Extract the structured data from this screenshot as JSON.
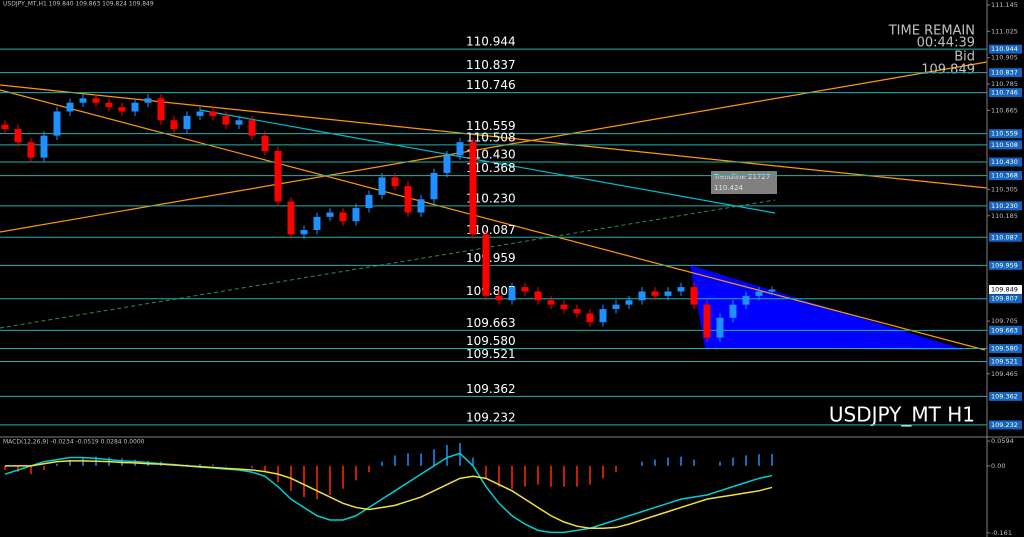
{
  "chart_data": [
    {
      "type": "candlestick",
      "title": "USDJPY_MT,H1  109.840 109.863 109.824 109.849",
      "watermark": "USDJPY_MT H1",
      "up_color": "#1e90ff",
      "down_color": "#ff0000",
      "level_color": "#20b2aa",
      "open": [
        110.6,
        110.58,
        110.52,
        110.45,
        110.55,
        110.66,
        110.7,
        110.72,
        110.7,
        110.68,
        110.66,
        110.7,
        110.72,
        110.62,
        110.58,
        110.64,
        110.66,
        110.64,
        110.6,
        110.62,
        110.55,
        110.48,
        110.25,
        110.1,
        110.12,
        110.18,
        110.2,
        110.16,
        110.22,
        110.28,
        110.36,
        110.32,
        110.2,
        110.26,
        110.38,
        110.46,
        110.52,
        110.1,
        109.82,
        109.8,
        109.86,
        109.84,
        109.8,
        109.78,
        109.76,
        109.74,
        109.7,
        109.76,
        109.78,
        109.8,
        109.84,
        109.82,
        109.84,
        109.86,
        109.78,
        109.63,
        109.72,
        109.78,
        109.82,
        109.84
      ],
      "high": [
        110.62,
        110.6,
        110.54,
        110.57,
        110.68,
        110.72,
        110.74,
        110.74,
        110.72,
        110.7,
        110.72,
        110.74,
        110.74,
        110.64,
        110.66,
        110.68,
        110.68,
        110.66,
        110.64,
        110.64,
        110.57,
        110.5,
        110.27,
        110.14,
        110.2,
        110.22,
        110.22,
        110.24,
        110.3,
        110.38,
        110.38,
        110.34,
        110.28,
        110.4,
        110.48,
        110.54,
        110.54,
        110.12,
        109.84,
        109.88,
        109.88,
        109.86,
        109.82,
        109.8,
        109.78,
        109.76,
        109.78,
        109.8,
        109.82,
        109.86,
        109.86,
        109.86,
        109.88,
        109.88,
        109.8,
        109.74,
        109.8,
        109.84,
        109.86,
        109.863
      ],
      "low": [
        110.56,
        110.5,
        110.43,
        110.43,
        110.53,
        110.64,
        110.68,
        110.68,
        110.66,
        110.64,
        110.64,
        110.68,
        110.6,
        110.56,
        110.56,
        110.62,
        110.62,
        110.58,
        110.58,
        110.53,
        110.46,
        110.23,
        110.08,
        110.08,
        110.1,
        110.16,
        110.14,
        110.14,
        110.2,
        110.26,
        110.3,
        110.18,
        110.18,
        110.24,
        110.36,
        110.44,
        110.08,
        109.8,
        109.78,
        109.78,
        109.82,
        109.78,
        109.76,
        109.74,
        109.72,
        109.68,
        109.68,
        109.74,
        109.76,
        109.78,
        109.8,
        109.8,
        109.82,
        109.76,
        109.61,
        109.61,
        109.7,
        109.76,
        109.8,
        109.824
      ],
      "close": [
        110.58,
        110.52,
        110.45,
        110.55,
        110.66,
        110.7,
        110.72,
        110.7,
        110.68,
        110.66,
        110.7,
        110.72,
        110.62,
        110.58,
        110.64,
        110.66,
        110.64,
        110.6,
        110.62,
        110.55,
        110.48,
        110.25,
        110.1,
        110.12,
        110.18,
        110.2,
        110.16,
        110.22,
        110.28,
        110.36,
        110.32,
        110.2,
        110.26,
        110.38,
        110.46,
        110.52,
        110.1,
        109.82,
        109.8,
        109.86,
        109.84,
        109.8,
        109.78,
        109.76,
        109.74,
        109.7,
        109.76,
        109.78,
        109.8,
        109.84,
        109.82,
        109.84,
        109.86,
        109.78,
        109.63,
        109.72,
        109.78,
        109.82,
        109.84,
        109.849
      ],
      "ylim": [
        109.177,
        111.168
      ],
      "yticks": [
        111.145,
        111.025,
        110.905,
        110.785,
        110.665,
        110.305,
        110.185,
        109.705,
        109.465
      ],
      "levels": [
        110.944,
        110.837,
        110.746,
        110.559,
        110.508,
        {
          "value": 110.43,
          "label": "110.430"
        },
        110.368,
        {
          "value": 110.23,
          "label": "110.230"
        },
        110.087,
        109.959,
        109.807,
        109.663,
        {
          "value": 109.58,
          "label": "109.580"
        },
        109.521,
        109.362,
        109.232
      ],
      "trendline": {
        "name": "Trendline 21727",
        "value": 110.424
      },
      "time_remain": {
        "title": "TIME REMAIN",
        "time": "00:44:39",
        "bid_label": "Bid",
        "bid": 109.849
      }
    },
    {
      "type": "macd",
      "title": "MACD(12,26,9) -0.0234 -0.0519 0.0284 0.0000",
      "ylim": [
        -0.171,
        0.0693
      ],
      "yticks": [
        0.0594,
        {
          "value": 0,
          "label": "0.00"
        },
        -0.161
      ],
      "histogram": {
        "up_color": "#1e90ff",
        "down_color": "#ff2a00",
        "values": [
          -0.01,
          -0.015,
          -0.02,
          -0.01,
          0.005,
          0.015,
          0.02,
          0.022,
          0.02,
          0.018,
          0.015,
          0.012,
          0.01,
          0.005,
          0.003,
          0.004,
          0.003,
          0.001,
          0,
          -0.005,
          -0.015,
          -0.04,
          -0.06,
          -0.075,
          -0.08,
          -0.07,
          -0.055,
          -0.035,
          -0.015,
          0.01,
          0.025,
          0.03,
          0.03,
          0.04,
          0.05,
          0.055,
          0.02,
          -0.03,
          -0.05,
          -0.055,
          -0.05,
          -0.045,
          -0.05,
          -0.05,
          -0.05,
          -0.045,
          -0.03,
          -0.015,
          0,
          0.01,
          0.015,
          0.02,
          0.022,
          0.015,
          0,
          0.01,
          0.02,
          0.025,
          0.028,
          0.0284
        ]
      },
      "series": [
        {
          "color": "#00ced1",
          "values": [
            -0.02,
            -0.01,
            0,
            0.01,
            0.015,
            0.02,
            0.02,
            0.018,
            0.015,
            0.012,
            0.01,
            0.008,
            0.005,
            0.003,
            0,
            -0.003,
            -0.005,
            -0.008,
            -0.01,
            -0.015,
            -0.025,
            -0.05,
            -0.08,
            -0.1,
            -0.12,
            -0.13,
            -0.13,
            -0.12,
            -0.1,
            -0.08,
            -0.06,
            -0.04,
            -0.02,
            0,
            0.02,
            0.03,
            0,
            -0.05,
            -0.09,
            -0.12,
            -0.14,
            -0.155,
            -0.16,
            -0.16,
            -0.155,
            -0.15,
            -0.14,
            -0.13,
            -0.12,
            -0.11,
            -0.1,
            -0.09,
            -0.08,
            -0.075,
            -0.07,
            -0.06,
            -0.05,
            -0.04,
            -0.03,
            -0.0234
          ]
        },
        {
          "color": "#f0e040",
          "values": [
            0,
            0,
            0,
            0.005,
            0.01,
            0.012,
            0.012,
            0.011,
            0.01,
            0.008,
            0.007,
            0.005,
            0.004,
            0.002,
            0,
            -0.002,
            -0.004,
            -0.006,
            -0.008,
            -0.01,
            -0.014,
            -0.02,
            -0.03,
            -0.045,
            -0.06,
            -0.075,
            -0.09,
            -0.1,
            -0.105,
            -0.1,
            -0.095,
            -0.085,
            -0.075,
            -0.06,
            -0.045,
            -0.03,
            -0.025,
            -0.03,
            -0.045,
            -0.06,
            -0.08,
            -0.1,
            -0.12,
            -0.135,
            -0.145,
            -0.15,
            -0.15,
            -0.148,
            -0.14,
            -0.13,
            -0.12,
            -0.11,
            -0.1,
            -0.09,
            -0.08,
            -0.075,
            -0.07,
            -0.065,
            -0.06,
            -0.0519
          ]
        }
      ]
    }
  ]
}
